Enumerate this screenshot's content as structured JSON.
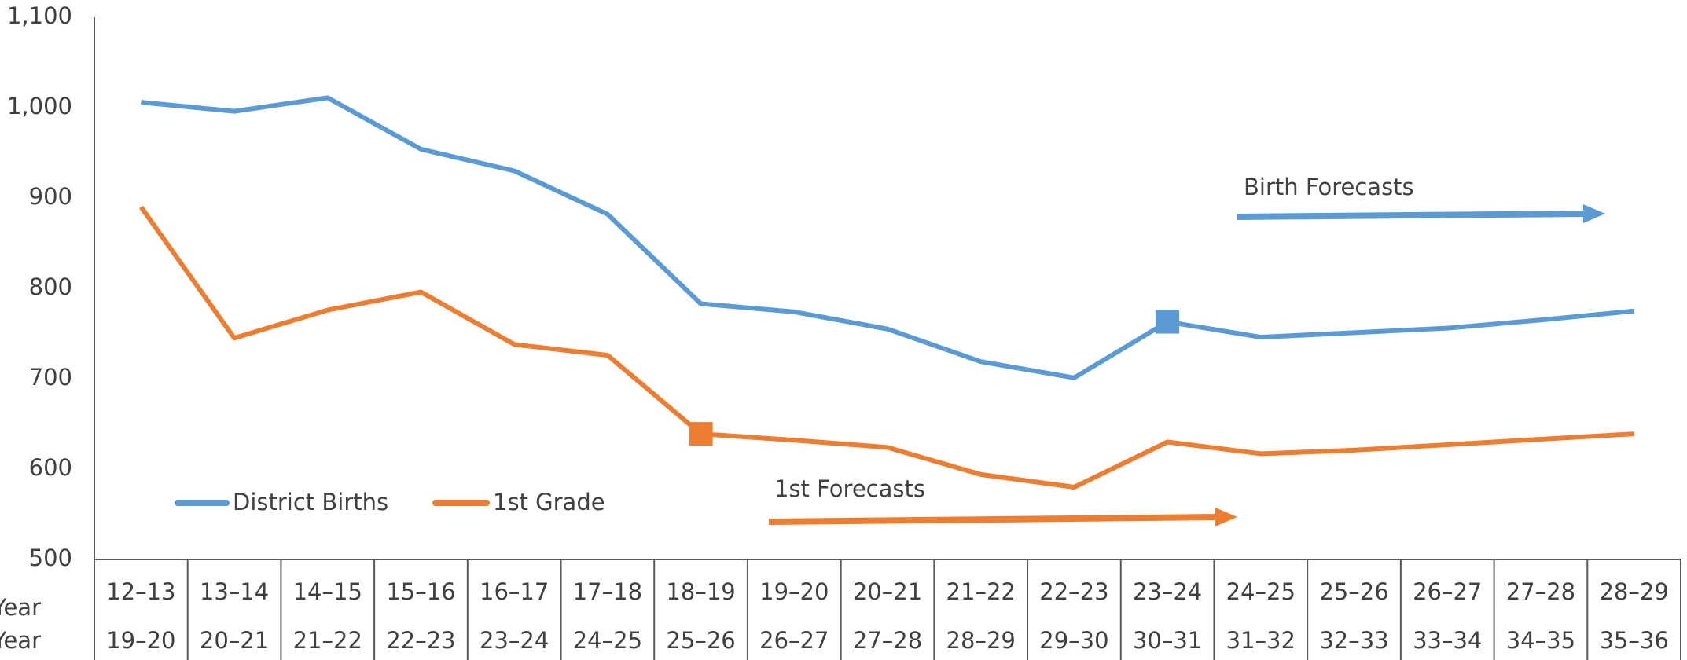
{
  "chart_data": {
    "type": "line",
    "categories": [
      "12–13",
      "13–14",
      "14–15",
      "15–16",
      "16–17",
      "17–18",
      "18–19",
      "19–20",
      "20–21",
      "21–22",
      "22–23",
      "23–24",
      "24–25",
      "25–26",
      "26–27",
      "27–28",
      "28–29"
    ],
    "row_labels": [
      "Birth Year",
      "School Year"
    ],
    "school_years": [
      "19–20",
      "20–21",
      "21–22",
      "22–23",
      "23–24",
      "24–25",
      "25–26",
      "26–27",
      "27–28",
      "28–29",
      "29–30",
      "30–31",
      "31–32",
      "32–33",
      "33–34",
      "34–35",
      "35–36"
    ],
    "series": [
      {
        "name": "District Births",
        "color": "#5b9bd5",
        "highlight_index": 11,
        "values": [
          1006,
          996,
          1011,
          954,
          930,
          882,
          783,
          774,
          755,
          719,
          701,
          763,
          746,
          751,
          756,
          765,
          775
        ]
      },
      {
        "name": "1st Grade",
        "color": "#ed7d31",
        "highlight_index": 6,
        "values": [
          890,
          745,
          776,
          796,
          738,
          726,
          639,
          632,
          624,
          594,
          580,
          630,
          617,
          621,
          627,
          633,
          639
        ]
      }
    ],
    "annotations": [
      {
        "text": "Birth Forecasts",
        "color": "#5b9bd5"
      },
      {
        "text": "1st Forecasts",
        "color": "#ed7d31"
      }
    ],
    "ylim": [
      500,
      1100
    ],
    "yticks": [
      500,
      600,
      700,
      800,
      900,
      {
        "value": 1000,
        "label": "1,000"
      },
      {
        "value": 1100,
        "label": "1,100"
      }
    ],
    "legend": "lower left"
  }
}
